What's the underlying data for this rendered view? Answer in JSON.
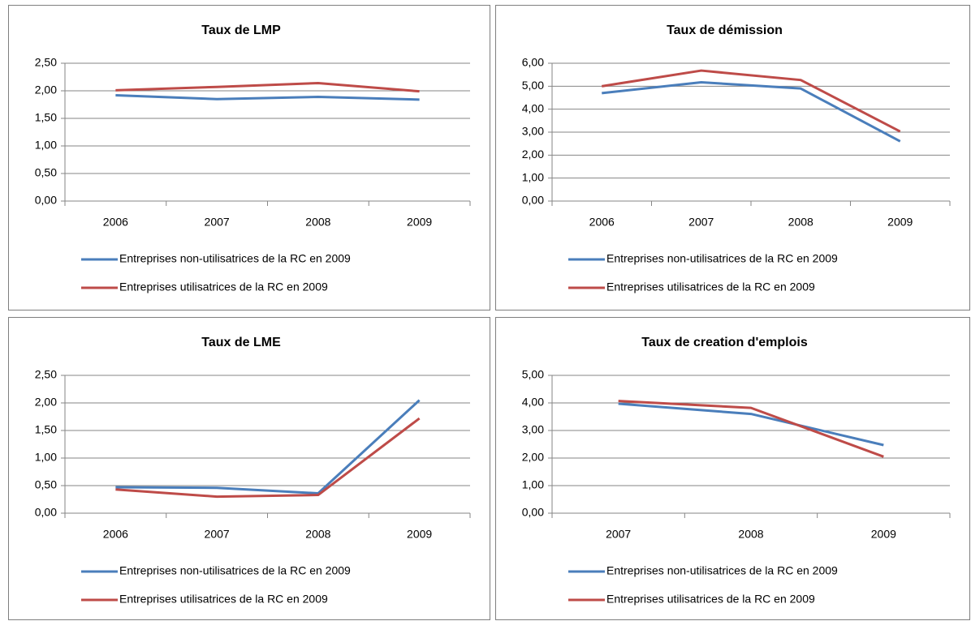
{
  "chart_data": [
    {
      "type": "line",
      "title": "Taux de LMP",
      "categories": [
        "2006",
        "2007",
        "2008",
        "2009"
      ],
      "series": [
        {
          "name": "Entreprises non-utilisatrices de la RC en 2009",
          "color": "#4a7ebb",
          "values": [
            1.92,
            1.85,
            1.89,
            1.84
          ]
        },
        {
          "name": "Entreprises utilisatrices de la RC en 2009",
          "color": "#be4b48",
          "values": [
            2.01,
            2.07,
            2.14,
            1.99
          ]
        }
      ],
      "ylim": [
        0,
        2.5
      ],
      "yticks": [
        {
          "value": 0,
          "label": "0,00"
        },
        {
          "value": 0.5,
          "label": "0,50"
        },
        {
          "value": 1,
          "label": "1,00"
        },
        {
          "value": 1.5,
          "label": "1,50"
        },
        {
          "value": 2,
          "label": "2,00"
        },
        {
          "value": 2.5,
          "label": "2,50"
        }
      ],
      "grid": true,
      "legend": "bottom"
    },
    {
      "type": "line",
      "title": "Taux de démission",
      "categories": [
        "2006",
        "2007",
        "2008",
        "2009"
      ],
      "series": [
        {
          "name": "Entreprises non-utilisatrices de la RC en 2009",
          "color": "#4a7ebb",
          "values": [
            4.7,
            5.17,
            4.9,
            2.6
          ]
        },
        {
          "name": "Entreprises utilisatrices de la RC en 2009",
          "color": "#be4b48",
          "values": [
            5.0,
            5.68,
            5.27,
            3.03
          ]
        }
      ],
      "ylim": [
        0,
        6
      ],
      "yticks": [
        {
          "value": 0,
          "label": "0,00"
        },
        {
          "value": 1,
          "label": "1,00"
        },
        {
          "value": 2,
          "label": "2,00"
        },
        {
          "value": 3,
          "label": "3,00"
        },
        {
          "value": 4,
          "label": "4,00"
        },
        {
          "value": 5,
          "label": "5,00"
        },
        {
          "value": 6,
          "label": "6,00"
        }
      ],
      "grid": true,
      "legend": "bottom"
    },
    {
      "type": "line",
      "title": "Taux de LME",
      "categories": [
        "2006",
        "2007",
        "2008",
        "2009"
      ],
      "series": [
        {
          "name": "Entreprises non-utilisatrices de la RC en 2009",
          "color": "#4a7ebb",
          "values": [
            0.47,
            0.46,
            0.36,
            2.05
          ]
        },
        {
          "name": "Entreprises utilisatrices de la RC en 2009",
          "color": "#be4b48",
          "values": [
            0.43,
            0.3,
            0.33,
            1.72
          ]
        }
      ],
      "ylim": [
        0,
        2.5
      ],
      "yticks": [
        {
          "value": 0,
          "label": "0,00"
        },
        {
          "value": 0.5,
          "label": "0,50"
        },
        {
          "value": 1,
          "label": "1,00"
        },
        {
          "value": 1.5,
          "label": "1,50"
        },
        {
          "value": 2,
          "label": "2,00"
        },
        {
          "value": 2.5,
          "label": "2,50"
        }
      ],
      "grid": true,
      "legend": "bottom"
    },
    {
      "type": "line",
      "title": "Taux de creation d'emplois",
      "categories": [
        "2007",
        "2008",
        "2009"
      ],
      "series": [
        {
          "name": "Entreprises non-utilisatrices de la RC en 2009",
          "color": "#4a7ebb",
          "values": [
            3.97,
            3.6,
            2.47
          ]
        },
        {
          "name": "Entreprises utilisatrices de la RC en 2009",
          "color": "#be4b48",
          "values": [
            4.07,
            3.82,
            2.05
          ]
        }
      ],
      "ylim": [
        0,
        5
      ],
      "yticks": [
        {
          "value": 0,
          "label": "0,00"
        },
        {
          "value": 1,
          "label": "1,00"
        },
        {
          "value": 2,
          "label": "2,00"
        },
        {
          "value": 3,
          "label": "3,00"
        },
        {
          "value": 4,
          "label": "4,00"
        },
        {
          "value": 5,
          "label": "5,00"
        }
      ],
      "grid": true,
      "legend": "bottom"
    }
  ]
}
